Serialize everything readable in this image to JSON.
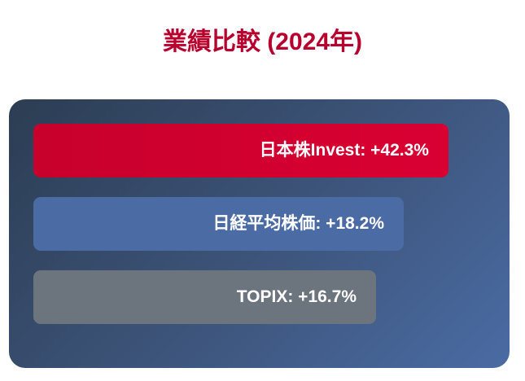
{
  "title": "業績比較 (2024年)",
  "items": [
    {
      "label": "日本株Invest: +42.3%"
    },
    {
      "label": "日経平均株価: +18.2%"
    },
    {
      "label": "TOPIX: +16.7%"
    }
  ]
}
